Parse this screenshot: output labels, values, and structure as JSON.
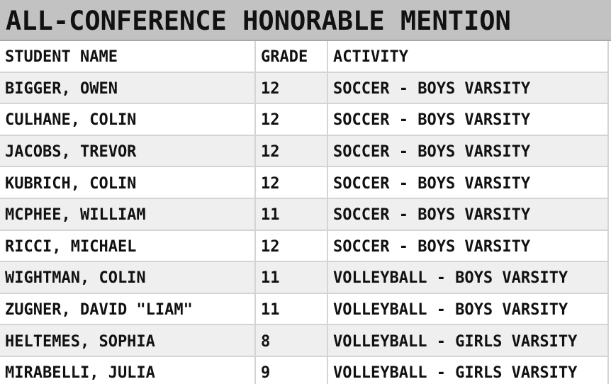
{
  "header": {
    "title": "ALL-CONFERENCE HONORABLE MENTION"
  },
  "table": {
    "columns": [
      "STUDENT NAME",
      "GRADE",
      "ACTIVITY"
    ],
    "rows": [
      [
        "BIGGER, OWEN",
        "12",
        "SOCCER - BOYS VARSITY"
      ],
      [
        "CULHANE, COLIN",
        "12",
        "SOCCER - BOYS VARSITY"
      ],
      [
        "JACOBS, TREVOR",
        "12",
        "SOCCER - BOYS VARSITY"
      ],
      [
        "KUBRICH, COLIN",
        "12",
        "SOCCER - BOYS VARSITY"
      ],
      [
        "MCPHEE, WILLIAM",
        "11",
        "SOCCER - BOYS VARSITY"
      ],
      [
        "RICCI, MICHAEL",
        "12",
        "SOCCER - BOYS VARSITY"
      ],
      [
        "WIGHTMAN, COLIN",
        "11",
        "VOLLEYBALL - BOYS VARSITY"
      ],
      [
        "ZUGNER, DAVID \"LIAM\"",
        "11",
        "VOLLEYBALL - BOYS VARSITY"
      ],
      [
        "HELTEMES, SOPHIA",
        "8",
        "VOLLEYBALL - GIRLS VARSITY"
      ],
      [
        "MIRABELLI, JULIA",
        "9",
        "VOLLEYBALL - GIRLS VARSITY"
      ]
    ]
  }
}
